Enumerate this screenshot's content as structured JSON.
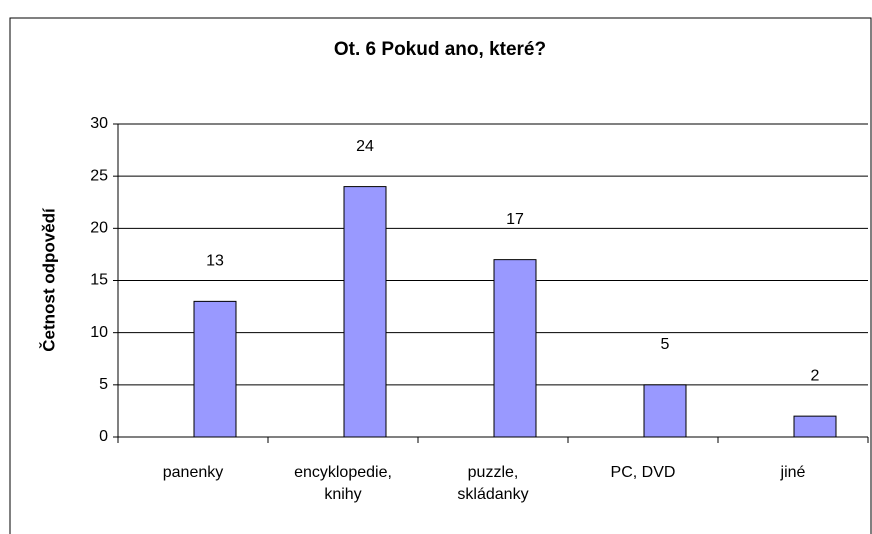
{
  "chart_data": {
    "type": "bar",
    "title": "Ot. 6 Pokud ano, které?",
    "y_label": "Četnost odpovědí",
    "categories": [
      "panenky",
      "encyklopedie,\nknihy",
      "puzzle,\nskládanky",
      "PC, DVD",
      "jiné"
    ],
    "values": [
      13,
      24,
      17,
      5,
      2
    ],
    "color": "#9999ff",
    "ylim": [
      0,
      30
    ],
    "yticks": [
      0,
      5,
      10,
      15,
      20,
      25,
      30
    ],
    "grid": true
  }
}
